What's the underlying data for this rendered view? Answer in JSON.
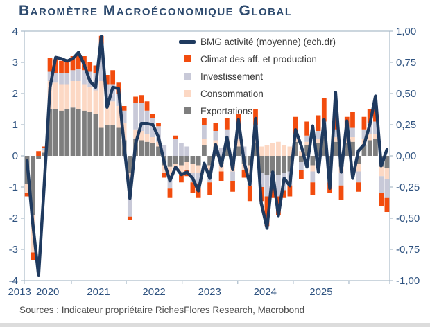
{
  "header": {
    "title": "Baromètre Macroéconomique Global"
  },
  "legend": {
    "items": [
      {
        "label": "BMG activité (moyenne) (ech.dr)",
        "swatch": "line",
        "color_key": "navy"
      },
      {
        "label": "Climat des aff. et production",
        "swatch": "box",
        "color_key": "orange"
      },
      {
        "label": "Investissement",
        "swatch": "box",
        "color_key": "lavender"
      },
      {
        "label": "Consommation",
        "swatch": "box",
        "color_key": "pink"
      },
      {
        "label": "Exportations",
        "swatch": "box",
        "color_key": "gray"
      }
    ]
  },
  "footer": {
    "text": "Sources : Indicateur propriétaire RichesFlores Research, Macrobond"
  },
  "colors": {
    "navy": "#1f3a5f",
    "orange": "#f24c0e",
    "lavender": "#c8c9d8",
    "pink": "#fcd8c4",
    "gray": "#7e7e7e",
    "axis_text": "#2f5380",
    "plot_border": "#a9bac9",
    "title_text": "#2d4a6e",
    "footer_text": "#4d4d4d"
  },
  "chart_data": {
    "type": "bar",
    "subtype": "stacked-bars-with-line-overlay",
    "title": "Baromètre Macroéconomique Global",
    "xlabel": "",
    "ylabel_left": "",
    "ylabel_right": "",
    "grid": false,
    "legend_position": "top-center-inside",
    "ylim_left": [
      -4,
      4
    ],
    "ylim_right": [
      -1.0,
      1.0
    ],
    "left_ticks": [
      "4",
      "3",
      "2",
      "1",
      "0",
      "-1",
      "-2",
      "-3",
      "-4"
    ],
    "right_ticks": [
      "1,00",
      "0,75",
      "0,50",
      "0,25",
      "0,00",
      "-0,25",
      "-0,50",
      "-0,75",
      "-1,00"
    ],
    "x_tick_labels": [
      "2013",
      "2020",
      "2021",
      "2022",
      "2023",
      "2024",
      "2025"
    ],
    "x_note": "monthly observations, values estimated from pixels; bars on left axis, line on right axis (ech.dr)",
    "stacking_order_from_zero": [
      "Exportations",
      "Consommation",
      "Investissement",
      "Climat des aff. et production"
    ],
    "bar_series": [
      {
        "name": "Climat des aff. et production",
        "color_key": "orange",
        "values": [
          -0.1,
          -0.25,
          0.15,
          0.05,
          0.45,
          0.45,
          0.4,
          0.4,
          0.45,
          0.5,
          0.45,
          0.3,
          0.25,
          0.25,
          0.3,
          0.45,
          0.35,
          0.15,
          -0.1,
          0.2,
          0.25,
          0.3,
          0.15,
          0.1,
          -0.15,
          -0.3,
          0.1,
          -0.25,
          -0.2,
          -0.35,
          -0.45,
          0.2,
          -0.4,
          0.25,
          -0.3,
          0.35,
          -0.35,
          0.45,
          -0.25,
          -0.5,
          0.5,
          -0.45,
          -0.95,
          -0.3,
          -0.6,
          -0.25,
          -0.35,
          0.55,
          -0.3,
          0.45,
          -0.4,
          0.5,
          0.75,
          -0.35,
          0.5,
          -0.45,
          0.35,
          0.5,
          -0.3,
          0.4,
          0.45,
          0.5,
          -0.4,
          -0.45
        ]
      },
      {
        "name": "Investissement",
        "color_key": "lavender",
        "values": [
          0.0,
          0.0,
          0.0,
          0.05,
          0.3,
          0.3,
          0.35,
          0.35,
          0.35,
          0.4,
          0.45,
          0.5,
          0.55,
          1.2,
          0.5,
          0.55,
          0.4,
          0.4,
          -1.2,
          0.85,
          0.9,
          0.75,
          0.6,
          0.5,
          0.35,
          -0.4,
          0.55,
          0.4,
          0.3,
          -0.3,
          -0.35,
          0.45,
          -0.35,
          0.3,
          0.25,
          0.3,
          -0.3,
          0.35,
          0.3,
          -0.35,
          0.35,
          -0.45,
          -0.7,
          -0.5,
          -0.7,
          -0.55,
          -0.45,
          0.15,
          -0.25,
          0.2,
          -0.35,
          0.25,
          0.3,
          -0.3,
          0.25,
          -0.4,
          0.3,
          0.3,
          -0.35,
          0.3,
          0.35,
          0.4,
          -0.55,
          -0.6
        ]
      },
      {
        "name": "Consommation",
        "color_key": "pink",
        "values": [
          -0.3,
          -1.2,
          0.0,
          0.1,
          0.9,
          0.85,
          0.85,
          0.8,
          0.85,
          0.9,
          0.85,
          0.8,
          0.75,
          1.5,
          0.8,
          0.75,
          0.7,
          0.55,
          -0.2,
          0.3,
          0.3,
          0.25,
          0.2,
          0.15,
          -0.25,
          -0.3,
          -0.2,
          -0.3,
          -0.25,
          -0.3,
          -0.25,
          0.2,
          -0.2,
          0.2,
          -0.25,
          0.25,
          -0.25,
          0.25,
          -0.2,
          -0.3,
          0.25,
          0.3,
          0.35,
          0.4,
          0.45,
          0.35,
          0.3,
          0.1,
          0.15,
          0.1,
          -0.2,
          0.15,
          0.2,
          -0.25,
          0.15,
          -0.2,
          0.2,
          0.15,
          -0.25,
          0.2,
          0.2,
          0.15,
          -0.3,
          -0.35
        ]
      },
      {
        "name": "Exportations",
        "color_key": "gray",
        "values": [
          -0.9,
          -1.9,
          -0.1,
          0.1,
          1.5,
          1.5,
          1.45,
          1.5,
          1.55,
          1.5,
          1.45,
          1.4,
          1.35,
          0.9,
          1.0,
          1.0,
          0.9,
          0.5,
          -0.55,
          0.55,
          0.5,
          0.45,
          0.4,
          0.3,
          -0.3,
          -0.35,
          -0.25,
          -0.3,
          -0.2,
          -0.25,
          -0.3,
          0.35,
          -0.3,
          0.3,
          -0.25,
          0.3,
          -0.25,
          0.3,
          -0.25,
          -0.3,
          0.4,
          -0.55,
          -0.6,
          -0.55,
          -0.6,
          -0.55,
          -0.5,
          0.45,
          -0.2,
          0.35,
          -0.3,
          0.4,
          0.6,
          -0.3,
          0.45,
          -0.35,
          0.4,
          0.45,
          -0.25,
          0.35,
          0.5,
          0.55,
          -0.35,
          -0.4
        ]
      }
    ],
    "line_series": {
      "name": "BMG activité (moyenne) (ech.dr)",
      "axis": "right",
      "color_key": "navy",
      "values": [
        -0.04,
        -0.55,
        -0.96,
        -0.23,
        0.55,
        0.79,
        0.78,
        0.76,
        0.78,
        0.83,
        0.73,
        0.6,
        0.55,
        0.96,
        0.39,
        0.55,
        0.54,
        0.08,
        -0.34,
        0.1,
        0.26,
        0.26,
        0.25,
        0.15,
        -0.05,
        -0.2,
        -0.09,
        -0.15,
        -0.13,
        -0.18,
        -0.28,
        -0.06,
        -0.18,
        0.09,
        -0.08,
        0.15,
        -0.11,
        0.29,
        -0.05,
        -0.23,
        0.3,
        -0.38,
        -0.58,
        -0.13,
        -0.48,
        -0.18,
        -0.24,
        0.21,
        0.08,
        -0.09,
        0.24,
        -0.13,
        0.29,
        -0.26,
        0.51,
        -0.13,
        0.28,
        -0.18,
        0.04,
        0.09,
        0.25,
        0.48,
        -0.08,
        0.05
      ]
    }
  }
}
